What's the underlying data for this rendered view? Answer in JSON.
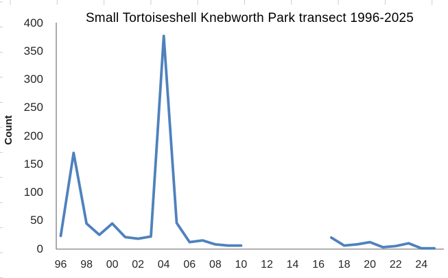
{
  "chart_data": {
    "type": "line",
    "title": "Small Tortoiseshell Knebworth Park transect 1996-2025",
    "ylabel": "Count",
    "xlabel": "",
    "x": [
      1996,
      1997,
      1998,
      1999,
      2000,
      2001,
      2002,
      2003,
      2004,
      2005,
      2006,
      2007,
      2008,
      2009,
      2010,
      2011,
      2012,
      2013,
      2014,
      2015,
      2016,
      2017,
      2018,
      2019,
      2020,
      2021,
      2022,
      2023,
      2024,
      2025
    ],
    "values": [
      23,
      170,
      45,
      25,
      45,
      21,
      18,
      22,
      377,
      46,
      12,
      15,
      8,
      6,
      6,
      null,
      null,
      null,
      null,
      null,
      null,
      20,
      6,
      8,
      12,
      3,
      5,
      10,
      1,
      1
    ],
    "ylim": [
      0,
      400
    ],
    "ytick_step": 50,
    "ytick_labels": [
      "0",
      "50",
      "100",
      "150",
      "200",
      "250",
      "300",
      "350",
      "400"
    ],
    "xtick_years": [
      1996,
      1998,
      2000,
      2002,
      2004,
      2006,
      2008,
      2010,
      2012,
      2014,
      2016,
      2018,
      2020,
      2022,
      2024
    ],
    "xtick_labels": [
      "96",
      "98",
      "00",
      "02",
      "04",
      "06",
      "08",
      "10",
      "12",
      "14",
      "16",
      "18",
      "20",
      "22",
      "24"
    ],
    "grid": false,
    "legend": "none",
    "gap_years": "2011-2016 no data (line break)",
    "line_color": "#4F81BD",
    "axis_color": "#8C8C8C",
    "edge_tick_color": "#CCCCCC",
    "label_color": "#262626"
  }
}
